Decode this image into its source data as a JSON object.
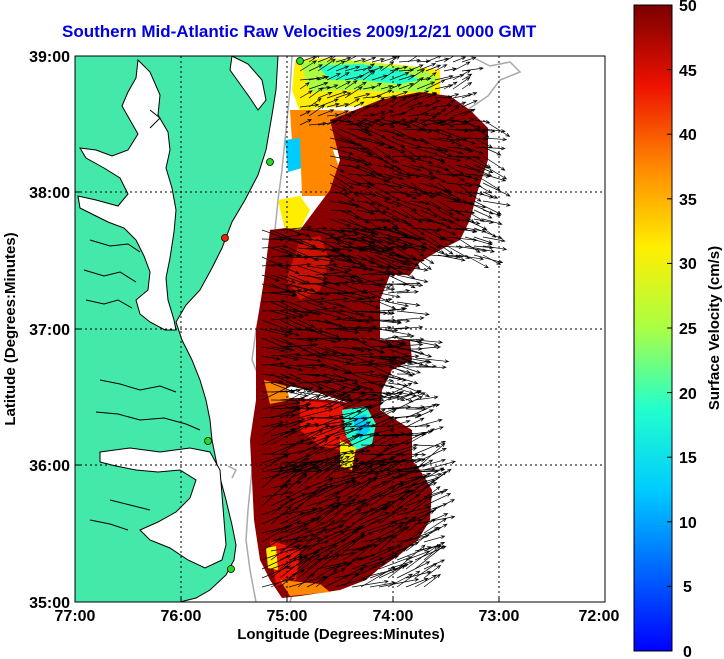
{
  "title": "Southern Mid-Atlantic Raw Velocities 2009/12/21 0000 GMT",
  "xlabel": "Longitude (Degrees:Minutes)",
  "ylabel": "Latitude (Degrees:Minutes)",
  "x_ticks": [
    "77:00",
    "76:00",
    "75:00",
    "74:00",
    "73:00",
    "72:00"
  ],
  "y_ticks": [
    "39:00",
    "38:00",
    "37:00",
    "36:00",
    "35:00"
  ],
  "colorbar": {
    "label": "Surface Velocity (cm/s)",
    "ticks": [
      "50",
      "45",
      "40",
      "35",
      "30",
      "25",
      "20",
      "15",
      "10",
      "5",
      "0"
    ],
    "range": [
      0,
      50
    ]
  },
  "colors": {
    "land": "#44e8a8",
    "ocean": "#ffffff",
    "title": "#0000e0",
    "station": "#22dd22"
  }
}
